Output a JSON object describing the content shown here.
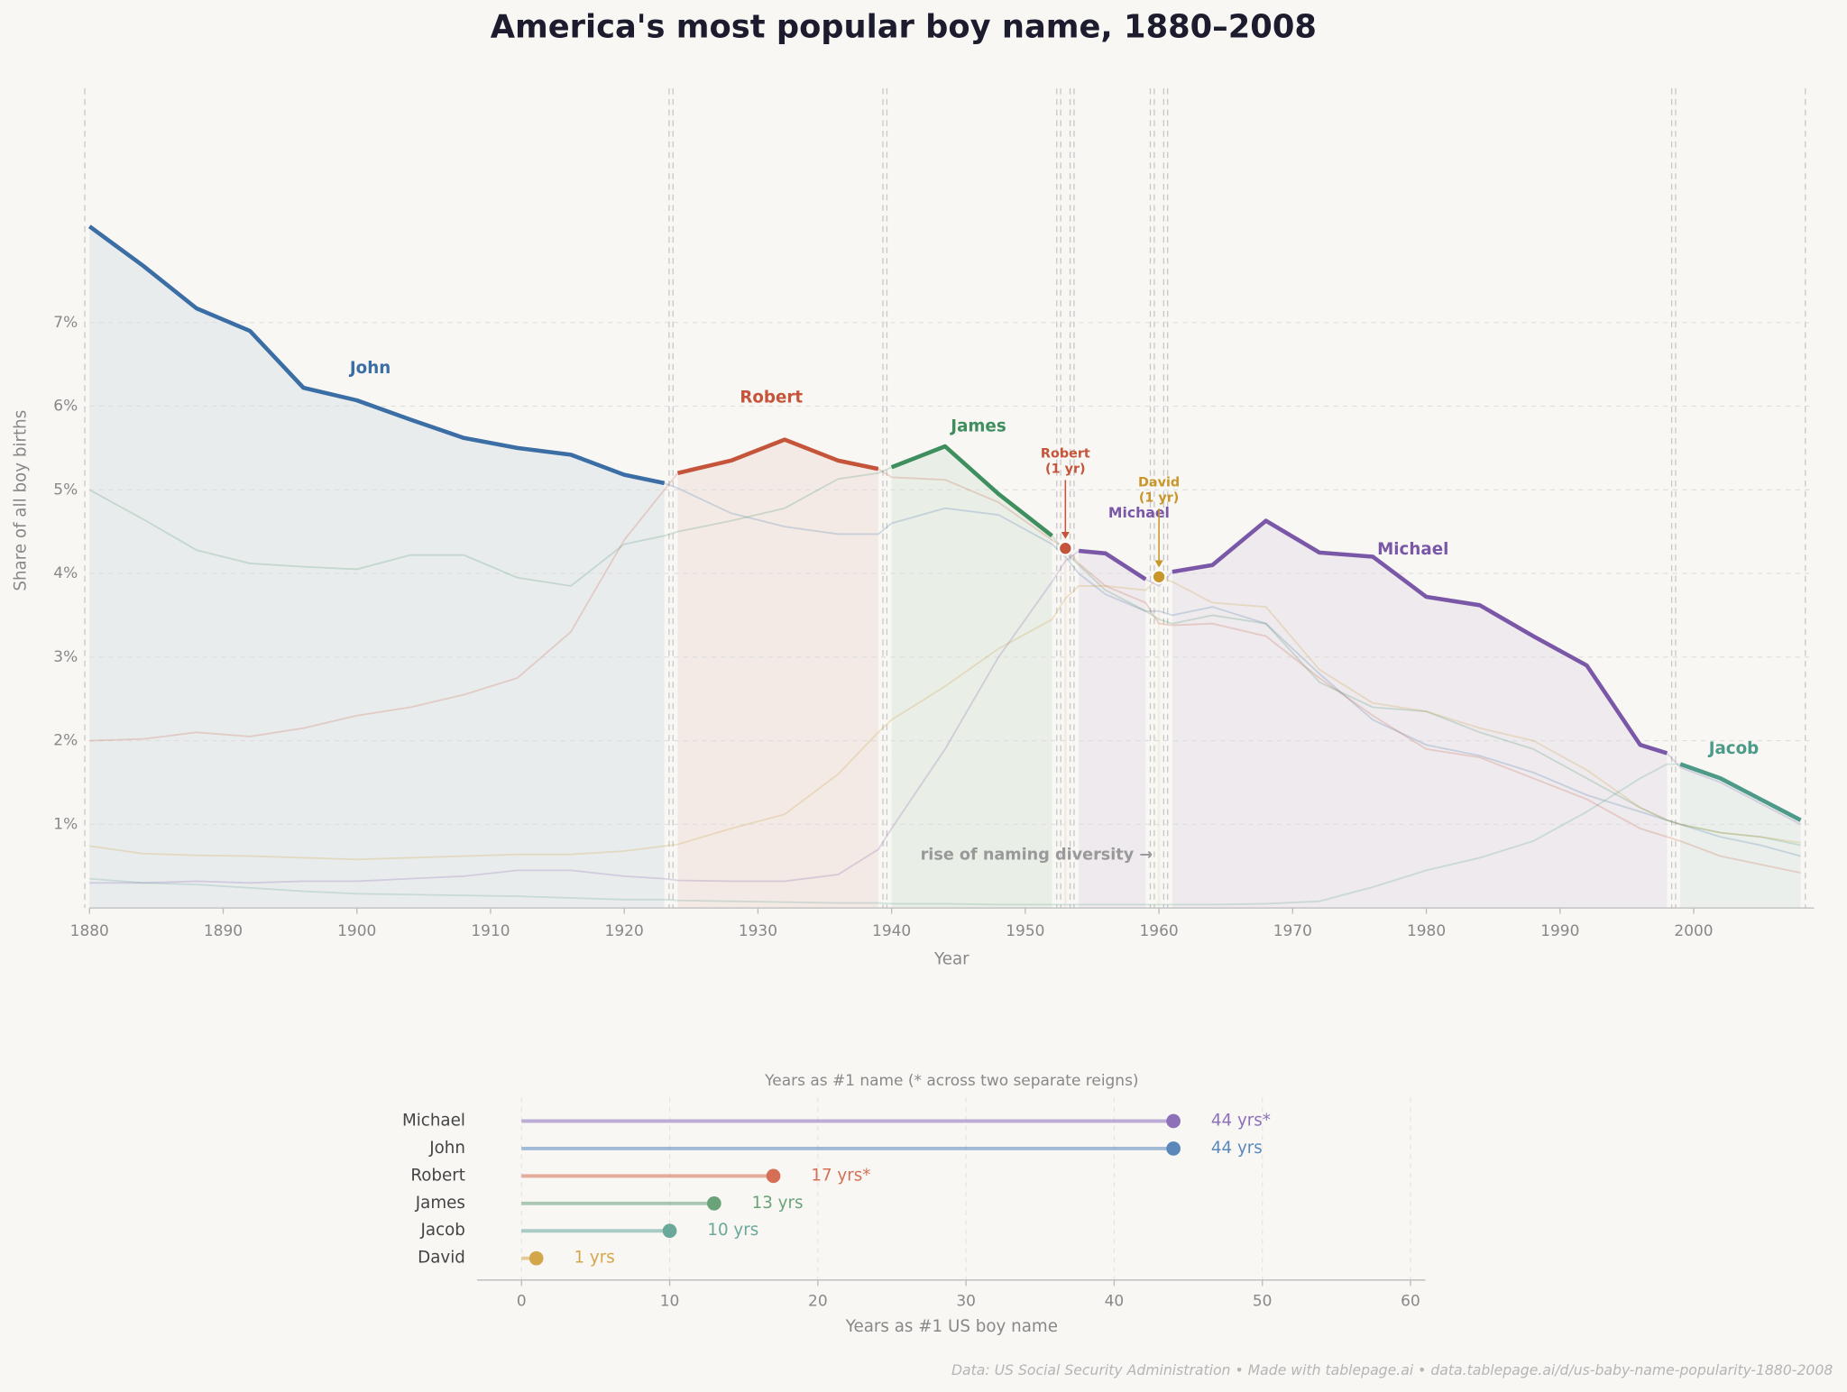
{
  "chart_data": [
    {
      "type": "line",
      "title": "America's most popular boy name, 1880–2008",
      "xlabel": "Year",
      "ylabel": "Share of all boy births",
      "xlim": [
        1880,
        2009
      ],
      "ylim": [
        0,
        9.8
      ],
      "xticks": [
        1880,
        1890,
        1900,
        1910,
        1920,
        1930,
        1940,
        1950,
        1960,
        1970,
        1980,
        1990,
        2000
      ],
      "yticks": [
        {
          "value": 1,
          "label": "1%"
        },
        {
          "value": 2,
          "label": "2%"
        },
        {
          "value": 3,
          "label": "3%"
        },
        {
          "value": 4,
          "label": "4%"
        },
        {
          "value": 5,
          "label": "5%"
        },
        {
          "value": 6,
          "label": "6%"
        },
        {
          "value": 7,
          "label": "7%"
        }
      ],
      "grid": true,
      "x": [
        1880,
        1884,
        1888,
        1892,
        1896,
        1900,
        1904,
        1908,
        1912,
        1916,
        1920,
        1923,
        1924,
        1928,
        1932,
        1936,
        1939,
        1940,
        1944,
        1948,
        1952,
        1953,
        1954,
        1956,
        1959,
        1960,
        1961,
        1964,
        1968,
        1972,
        1976,
        1980,
        1984,
        1988,
        1992,
        1996,
        1998,
        1999,
        2002,
        2005,
        2008
      ],
      "series": [
        {
          "name": "John",
          "color": "#3a6ea5",
          "values": [
            8.15,
            7.68,
            7.17,
            6.9,
            6.22,
            6.07,
            5.84,
            5.62,
            5.5,
            5.42,
            5.18,
            5.08,
            5.02,
            4.72,
            4.56,
            4.47,
            4.47,
            4.6,
            4.78,
            4.7,
            4.35,
            4.2,
            4.0,
            3.75,
            3.55,
            3.55,
            3.5,
            3.6,
            3.4,
            2.8,
            2.25,
            1.95,
            1.82,
            1.62,
            1.35,
            1.15,
            1.05,
            1.0,
            0.85,
            0.75,
            0.62
          ]
        },
        {
          "name": "Robert",
          "color": "#c4553a",
          "values": [
            2.0,
            2.02,
            2.1,
            2.05,
            2.15,
            2.3,
            2.4,
            2.55,
            2.75,
            3.3,
            4.4,
            5.0,
            5.2,
            5.35,
            5.6,
            5.35,
            5.25,
            5.15,
            5.12,
            4.85,
            4.4,
            4.3,
            4.12,
            3.85,
            3.65,
            3.4,
            3.38,
            3.4,
            3.25,
            2.75,
            2.3,
            1.9,
            1.8,
            1.55,
            1.3,
            0.95,
            0.85,
            0.8,
            0.62,
            0.52,
            0.42
          ]
        },
        {
          "name": "James",
          "color": "#3f8f5e",
          "values": [
            5.0,
            4.65,
            4.28,
            4.12,
            4.08,
            4.05,
            4.22,
            4.22,
            3.95,
            3.85,
            4.35,
            4.45,
            4.5,
            4.63,
            4.78,
            5.13,
            5.2,
            5.27,
            5.52,
            4.95,
            4.45,
            4.25,
            4.1,
            3.8,
            3.55,
            3.45,
            3.4,
            3.5,
            3.4,
            2.7,
            2.4,
            2.35,
            2.1,
            1.9,
            1.55,
            1.2,
            1.05,
            1.0,
            0.9,
            0.85,
            0.75
          ]
        },
        {
          "name": "Michael",
          "color": "#7b57a8",
          "values": [
            0.3,
            0.3,
            0.32,
            0.3,
            0.32,
            0.32,
            0.35,
            0.38,
            0.45,
            0.45,
            0.38,
            0.35,
            0.33,
            0.32,
            0.32,
            0.4,
            0.7,
            0.95,
            1.9,
            3.0,
            3.9,
            4.15,
            4.27,
            4.24,
            3.93,
            3.85,
            4.02,
            4.1,
            4.63,
            4.25,
            4.2,
            3.72,
            3.62,
            3.25,
            2.9,
            1.95,
            1.85,
            1.68,
            1.5,
            1.25,
            1.0
          ]
        },
        {
          "name": "David",
          "color": "#c9962a",
          "values": [
            0.74,
            0.65,
            0.63,
            0.62,
            0.6,
            0.58,
            0.6,
            0.62,
            0.64,
            0.64,
            0.68,
            0.74,
            0.76,
            0.95,
            1.12,
            1.6,
            2.1,
            2.25,
            2.65,
            3.1,
            3.45,
            3.7,
            3.85,
            3.85,
            3.8,
            3.96,
            3.9,
            3.65,
            3.6,
            2.85,
            2.45,
            2.35,
            2.15,
            2.0,
            1.65,
            1.2,
            1.05,
            1.0,
            0.9,
            0.85,
            0.78
          ]
        },
        {
          "name": "Jacob",
          "color": "#4d9a88",
          "values": [
            0.35,
            0.3,
            0.28,
            0.24,
            0.2,
            0.17,
            0.16,
            0.15,
            0.14,
            0.12,
            0.1,
            0.1,
            0.09,
            0.08,
            0.07,
            0.06,
            0.06,
            0.05,
            0.05,
            0.04,
            0.04,
            0.04,
            0.04,
            0.04,
            0.04,
            0.04,
            0.04,
            0.04,
            0.05,
            0.08,
            0.25,
            0.45,
            0.6,
            0.8,
            1.15,
            1.55,
            1.72,
            1.72,
            1.55,
            1.3,
            1.05
          ]
        }
      ],
      "reigns": [
        {
          "series": 0,
          "start": 1880,
          "end": 1923
        },
        {
          "series": 1,
          "start": 1924,
          "end": 1939
        },
        {
          "series": 2,
          "start": 1940,
          "end": 1952
        },
        {
          "series": 1,
          "start": 1953,
          "end": 1953
        },
        {
          "series": 3,
          "start": 1954,
          "end": 1959
        },
        {
          "series": 4,
          "start": 1960,
          "end": 1960
        },
        {
          "series": 3,
          "start": 1961,
          "end": 1998
        },
        {
          "series": 5,
          "start": 1999,
          "end": 2008
        }
      ],
      "reign_labels": [
        {
          "text": "John",
          "series": 0
        },
        {
          "text": "Robert",
          "series": 1
        },
        {
          "text": "James",
          "series": 2
        },
        {
          "text": "Michael",
          "series": 3
        },
        {
          "text": "Michael",
          "series": 3
        },
        {
          "text": "Jacob",
          "series": 5
        }
      ],
      "callouts": [
        {
          "series": 1,
          "lines": [
            "Robert",
            "(1 yr)"
          ]
        },
        {
          "series": 4,
          "lines": [
            "David",
            "(1 yr)"
          ]
        }
      ],
      "note": "rise of naming diversity →"
    },
    {
      "type": "lollipop",
      "title": "Years as #1 name  (* across two separate reigns)",
      "xlabel": "Years as #1 US boy name",
      "categories": [
        "Michael",
        "John",
        "Robert",
        "James",
        "Jacob",
        "David"
      ],
      "values": [
        44,
        44,
        17,
        13,
        10,
        1
      ],
      "value_labels": [
        "44 yrs*",
        "44 yrs",
        "17 yrs*",
        "13 yrs",
        "10 yrs",
        "1 yrs"
      ],
      "colors": [
        "#8c70b8",
        "#5a88bb",
        "#d46f55",
        "#6aa37a",
        "#6aa89a",
        "#d4a64a"
      ],
      "xlim": [
        -3,
        61
      ],
      "xticks": [
        0,
        10,
        20,
        30,
        40,
        50,
        60
      ],
      "grid": true
    }
  ],
  "footer": "Data: US Social Security Administration  •  Made with tablepage.ai  •  data.tablepage.ai/d/us-baby-name-popularity-1880-2008"
}
